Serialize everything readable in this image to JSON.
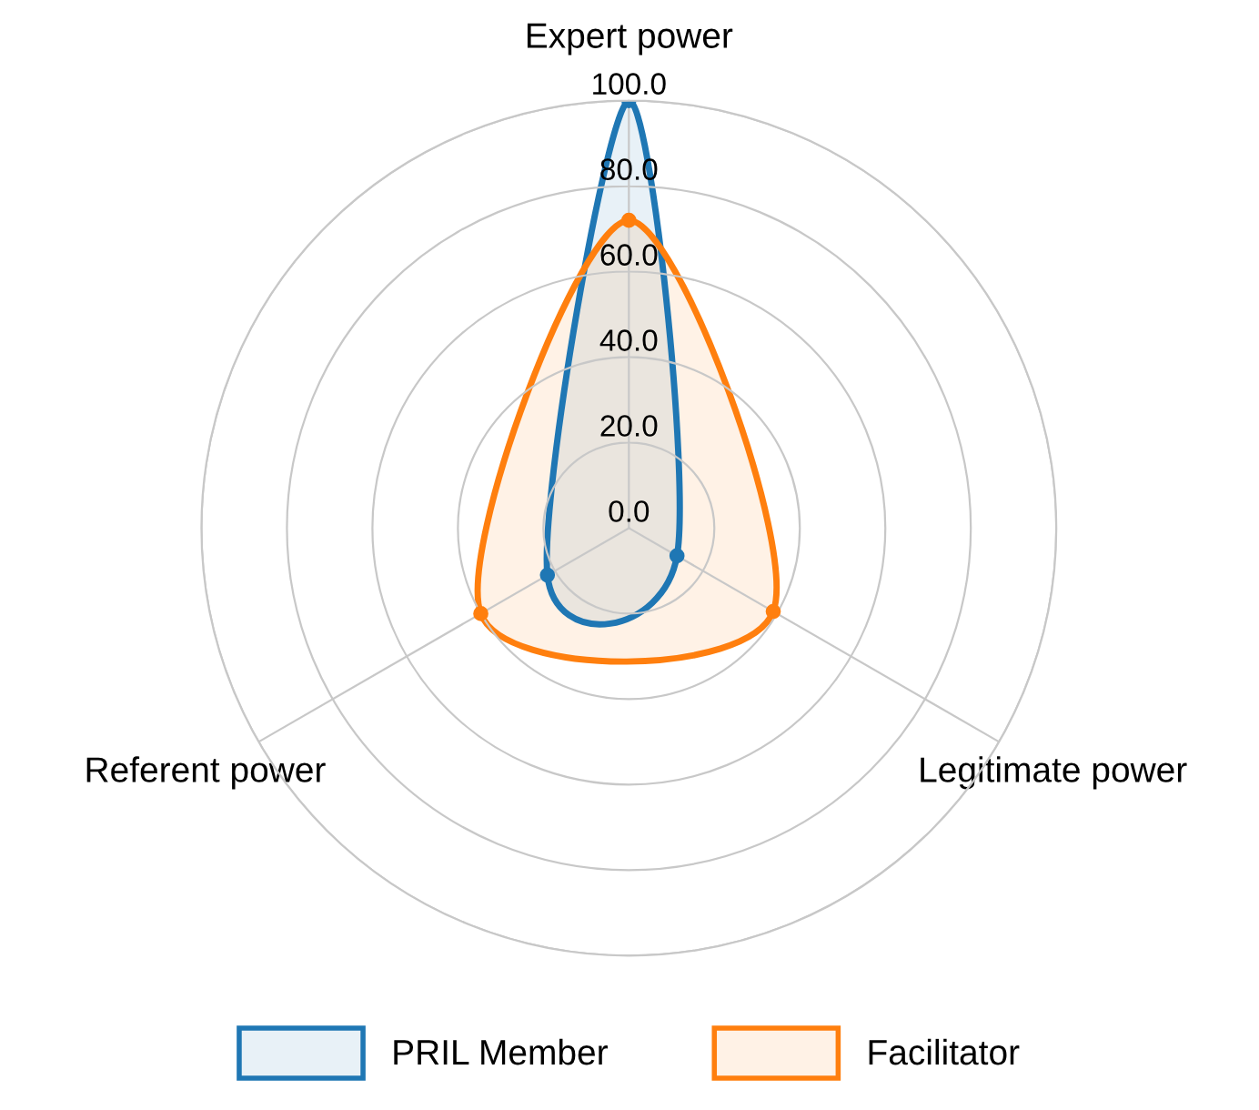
{
  "chart_data": {
    "type": "radar",
    "categories": [
      "Expert power",
      "Legitimate power",
      "Referent power"
    ],
    "series": [
      {
        "name": "PRIL Member",
        "color": "#1f77b4",
        "values": [
          100,
          13,
          22
        ]
      },
      {
        "name": "Facilitator",
        "color": "#ff7f0e",
        "values": [
          72,
          39,
          40
        ]
      }
    ],
    "ylim": [
      0,
      100
    ],
    "yticks": [
      {
        "value": 0,
        "label": "0.0"
      },
      {
        "value": 20,
        "label": "20.0"
      },
      {
        "value": 40,
        "label": "40.0"
      },
      {
        "value": 60,
        "label": "60.0"
      },
      {
        "value": 80,
        "label": "80.0"
      },
      {
        "value": 100,
        "label": "100.0"
      }
    ],
    "grid": true,
    "legend": "bottom",
    "marker": "circle",
    "line_style": "solid"
  }
}
